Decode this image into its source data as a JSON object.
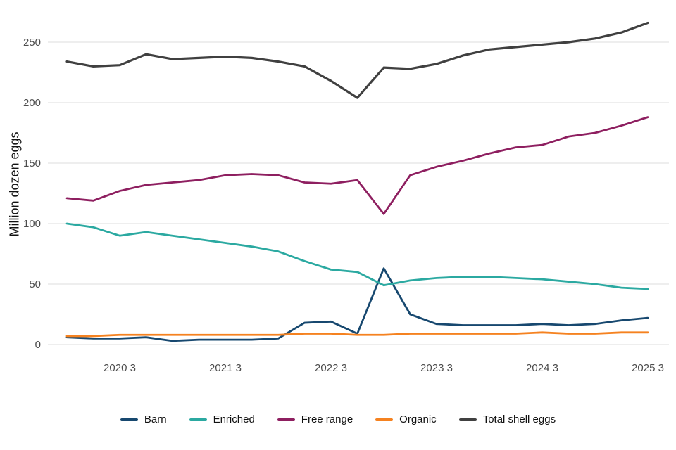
{
  "page": {
    "background": "#ffffff"
  },
  "chart_data": {
    "type": "line",
    "title": "",
    "ylabel": "Million dozen eggs",
    "xlabel": "",
    "ylim": [
      0,
      250
    ],
    "yticks": [
      0,
      50,
      100,
      150,
      200,
      250
    ],
    "grid": true,
    "legend_position": "bottom",
    "x": [
      "2020 1",
      "2020 2",
      "2020 3",
      "2020 4",
      "2021 1",
      "2021 2",
      "2021 3",
      "2021 4",
      "2022 1",
      "2022 2",
      "2022 3",
      "2022 4",
      "2023 1",
      "2023 2",
      "2023 3",
      "2023 4",
      "2024 1",
      "2024 2",
      "2024 3",
      "2024 4",
      "2025 1",
      "2025 2",
      "2025 3"
    ],
    "xtick_indices": [
      2,
      6,
      10,
      14,
      18,
      22
    ],
    "xtick_labels": [
      "2020 3",
      "2021 3",
      "2022 3",
      "2023 3",
      "2024 3",
      "2025 3"
    ],
    "series": [
      {
        "id": "barn",
        "name": "Barn",
        "color": "#17486F",
        "width": 2.8,
        "values": [
          6,
          5,
          5,
          6,
          3,
          4,
          4,
          4,
          5,
          18,
          19,
          9,
          63,
          25,
          17,
          16,
          16,
          16,
          17,
          16,
          17,
          20,
          22
        ]
      },
      {
        "id": "enriched",
        "name": "Enriched",
        "color": "#2BA9A1",
        "width": 2.8,
        "values": [
          100,
          97,
          90,
          93,
          90,
          87,
          84,
          81,
          77,
          69,
          62,
          60,
          49,
          53,
          55,
          56,
          56,
          55,
          54,
          52,
          50,
          47,
          46
        ]
      },
      {
        "id": "free-range",
        "name": "Free range",
        "color": "#8E1F60",
        "width": 2.8,
        "values": [
          121,
          119,
          127,
          132,
          134,
          136,
          140,
          141,
          140,
          134,
          133,
          136,
          108,
          140,
          147,
          152,
          158,
          163,
          165,
          172,
          175,
          181,
          188
        ]
      },
      {
        "id": "organic",
        "name": "Organic",
        "color": "#F58220",
        "width": 2.8,
        "values": [
          7,
          7,
          8,
          8,
          8,
          8,
          8,
          8,
          8,
          9,
          9,
          8,
          8,
          9,
          9,
          9,
          9,
          9,
          10,
          9,
          9,
          10,
          10
        ]
      },
      {
        "id": "total",
        "name": "Total shell eggs",
        "color": "#404040",
        "width": 3.2,
        "values": [
          234,
          230,
          231,
          240,
          236,
          237,
          238,
          237,
          234,
          230,
          218,
          204,
          229,
          228,
          232,
          239,
          244,
          246,
          248,
          250,
          253,
          258,
          266
        ]
      }
    ],
    "style": {
      "grid_color": "#E4E4E4",
      "tick_color": "#4D4D4D",
      "text_color": "#111111",
      "background": "#FFFFFF"
    }
  }
}
